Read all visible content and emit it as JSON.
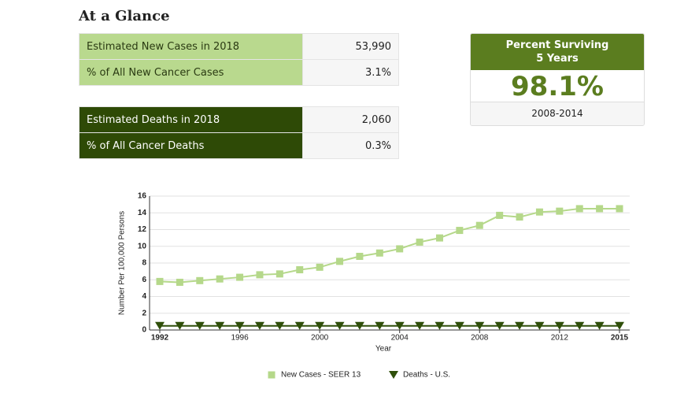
{
  "header": {
    "title": "At a Glance"
  },
  "new_cases_table": {
    "rows": [
      [
        "Estimated New Cases in 2018",
        "53,990"
      ],
      [
        "% of All New Cancer Cases",
        "3.1%"
      ]
    ]
  },
  "deaths_table": {
    "rows": [
      [
        "Estimated Deaths in 2018",
        "2,060"
      ],
      [
        "% of All Cancer Deaths",
        "0.3%"
      ]
    ]
  },
  "survival": {
    "title": "Percent Surviving 5 Years",
    "value": "98.1%",
    "period": "2008-2014"
  },
  "chart_data": {
    "type": "line",
    "x": [
      1992,
      1993,
      1994,
      1995,
      1996,
      1997,
      1998,
      1999,
      2000,
      2001,
      2002,
      2003,
      2004,
      2005,
      2006,
      2007,
      2008,
      2009,
      2010,
      2011,
      2012,
      2013,
      2014,
      2015
    ],
    "xlim": [
      1992,
      2015
    ],
    "xticks": [
      1992,
      1996,
      2000,
      2004,
      2008,
      2012,
      2015
    ],
    "ylim": [
      0,
      16
    ],
    "yticks": [
      0,
      2,
      4,
      6,
      8,
      10,
      12,
      14,
      16
    ],
    "xlabel": "Year",
    "ylabel": "Number Per 100,000 Persons",
    "grid": true,
    "legend": "bottom",
    "series": [
      {
        "name": "New Cases - SEER 13",
        "color": "#b5d88a",
        "marker": "square",
        "values": [
          5.8,
          5.7,
          5.9,
          6.1,
          6.3,
          6.6,
          6.7,
          7.2,
          7.5,
          8.2,
          8.8,
          9.2,
          9.7,
          10.5,
          11.0,
          11.9,
          12.5,
          13.7,
          13.5,
          14.1,
          14.2,
          14.5,
          14.5,
          14.5
        ]
      },
      {
        "name": "Deaths - U.S.",
        "color": "#2f4f0a",
        "marker": "triangle",
        "values": [
          0.5,
          0.5,
          0.5,
          0.5,
          0.5,
          0.5,
          0.5,
          0.5,
          0.5,
          0.5,
          0.5,
          0.5,
          0.5,
          0.5,
          0.5,
          0.5,
          0.5,
          0.5,
          0.5,
          0.5,
          0.5,
          0.5,
          0.5,
          0.5
        ]
      }
    ]
  }
}
